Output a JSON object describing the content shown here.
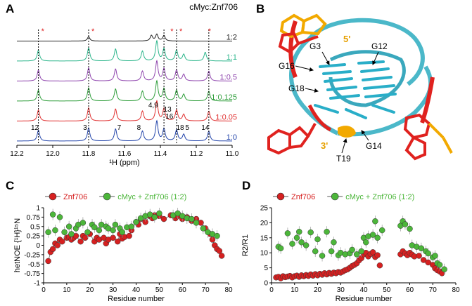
{
  "figure": {
    "panel_labels": {
      "a": "A",
      "b": "B",
      "c": "C",
      "d": "D"
    }
  },
  "chart_data": [
    {
      "panel": "A",
      "type": "line",
      "title": "cMyc:Znf706",
      "xlabel": "¹H (ppm)",
      "xlim": [
        12.2,
        11.0
      ],
      "x_ticks": [
        "12.2",
        "12.0",
        "11.8",
        "11.6",
        "11.4",
        "11.2",
        "11.0"
      ],
      "x_tick_values": [
        12.2,
        12.0,
        11.8,
        11.6,
        11.4,
        11.2,
        11.0
      ],
      "series": [
        {
          "name": "1:2",
          "color": "#222222",
          "peaks": [
            [
              11.8,
              0.2
            ],
            [
              11.45,
              0.25
            ],
            [
              11.42,
              0.3
            ],
            [
              11.38,
              0.25
            ]
          ]
        },
        {
          "name": "1:1",
          "color": "#2bb58a",
          "peaks": [
            [
              12.08,
              0.5
            ],
            [
              11.8,
              0.6
            ],
            [
              11.65,
              0.55
            ],
            [
              11.5,
              0.45
            ],
            [
              11.42,
              0.9
            ],
            [
              11.38,
              0.55
            ],
            [
              11.31,
              0.5
            ],
            [
              11.27,
              0.3
            ],
            [
              11.15,
              0.4
            ]
          ]
        },
        {
          "name": "1:0.5",
          "color": "#8e44ad",
          "peaks": [
            [
              12.08,
              0.5
            ],
            [
              11.8,
              0.6
            ],
            [
              11.65,
              0.55
            ],
            [
              11.5,
              0.45
            ],
            [
              11.42,
              0.9
            ],
            [
              11.38,
              0.55
            ],
            [
              11.31,
              0.5
            ],
            [
              11.27,
              0.3
            ],
            [
              11.13,
              0.45
            ]
          ]
        },
        {
          "name": "1:0.125",
          "color": "#2e9e3a",
          "peaks": [
            [
              12.08,
              0.5
            ],
            [
              11.8,
              0.6
            ],
            [
              11.65,
              0.55
            ],
            [
              11.5,
              0.45
            ],
            [
              11.42,
              0.9
            ],
            [
              11.38,
              0.55
            ],
            [
              11.31,
              0.5
            ],
            [
              11.27,
              0.3
            ],
            [
              11.13,
              0.45
            ]
          ]
        },
        {
          "name": "1:0.05",
          "color": "#e03030",
          "peaks": [
            [
              12.08,
              0.5
            ],
            [
              11.8,
              0.6
            ],
            [
              11.65,
              0.55
            ],
            [
              11.5,
              0.45
            ],
            [
              11.42,
              0.9
            ],
            [
              11.38,
              0.55
            ],
            [
              11.31,
              0.5
            ],
            [
              11.27,
              0.3
            ],
            [
              11.13,
              0.45
            ]
          ]
        },
        {
          "name": "1:0",
          "color": "#2244aa",
          "peaks": [
            [
              12.08,
              0.5
            ],
            [
              11.8,
              0.6
            ],
            [
              11.65,
              0.55
            ],
            [
              11.5,
              0.45
            ],
            [
              11.42,
              0.9
            ],
            [
              11.38,
              0.55
            ],
            [
              11.31,
              0.5
            ],
            [
              11.27,
              0.3
            ],
            [
              11.13,
              0.45
            ]
          ]
        }
      ],
      "dashed_lines_at": [
        12.08,
        11.8,
        11.38,
        11.31,
        11.13
      ],
      "star_markers": [
        12.08,
        11.8,
        11.36,
        11.31,
        11.15
      ],
      "peak_labels": [
        {
          "text": "12",
          "x": 12.1
        },
        {
          "text": "3",
          "x": 11.82
        },
        {
          "text": "7",
          "x": 11.63
        },
        {
          "text": "8",
          "x": 11.52
        },
        {
          "text": "4,9",
          "x": 11.44
        },
        {
          "text": "13",
          "x": 11.36
        },
        {
          "text": "16",
          "x": 11.35
        },
        {
          "text": "18",
          "x": 11.29
        },
        {
          "text": "5",
          "x": 11.25
        },
        {
          "text": "14",
          "x": 11.15
        }
      ]
    },
    {
      "panel": "B",
      "type": "other",
      "labels": [
        "5'",
        "G3",
        "G12",
        "G16",
        "G18",
        "3'",
        "T19",
        "G14"
      ],
      "colors": {
        "backbone": "#4bb8c9",
        "bases": "#29aec8",
        "ligand_red": "#e0221f",
        "ligand_gold": "#f2a900"
      }
    },
    {
      "panel": "C",
      "type": "scatter",
      "xlabel": "Residue number",
      "ylabel": "hetNOE {¹H}¹⁵N",
      "xlim": [
        0,
        80
      ],
      "ylim": [
        -1,
        1
      ],
      "x_ticks": [
        0,
        10,
        20,
        30,
        40,
        50,
        60,
        70,
        80
      ],
      "y_ticks": [
        -1,
        -0.75,
        -0.5,
        -0.25,
        0,
        0.25,
        0.5,
        0.75,
        1
      ],
      "y_tick_labels": [
        "-1",
        "-0.75",
        "-0.5",
        "-0.25",
        "0",
        "0.25",
        "0.5",
        "0.75",
        "1"
      ],
      "legend_position": "top",
      "series": [
        {
          "name": "Znf706",
          "color": "#d62020",
          "connected": true,
          "x": [
            2,
            3,
            4,
            5,
            6,
            7,
            8,
            10,
            11,
            12,
            13,
            14,
            16,
            17,
            18,
            20,
            22,
            23,
            24,
            26,
            27,
            28,
            30,
            32,
            33,
            34,
            35,
            37,
            38,
            40,
            41,
            42,
            44,
            46,
            47,
            48,
            50,
            52,
            55,
            57,
            58,
            60,
            62,
            64,
            66,
            68,
            70,
            72,
            73,
            74,
            75,
            76,
            77
          ],
          "y": [
            -0.42,
            -0.18,
            -0.1,
            0.05,
            0.0,
            0.15,
            0.1,
            0.2,
            0.22,
            0.15,
            0.2,
            0.25,
            0.1,
            0.25,
            0.2,
            0.3,
            0.1,
            0.2,
            0.15,
            0.2,
            0.05,
            0.15,
            0.2,
            0.1,
            0.3,
            0.18,
            0.22,
            0.25,
            0.4,
            0.62,
            0.55,
            0.7,
            0.62,
            0.78,
            0.72,
            0.8,
            0.78,
            0.7,
            0.8,
            0.72,
            0.78,
            0.7,
            0.75,
            0.65,
            0.7,
            0.6,
            0.45,
            0.3,
            0.15,
            0.0,
            -0.1,
            -0.15,
            -0.28
          ]
        },
        {
          "name": "cMyc + Znf706 (1:2)",
          "color": "#4cb63a",
          "connected": false,
          "x": [
            2,
            4,
            5,
            7,
            9,
            11,
            12,
            14,
            15,
            17,
            19,
            21,
            22,
            24,
            25,
            27,
            28,
            30,
            31,
            33,
            34,
            36,
            38,
            40,
            42,
            44,
            46,
            48,
            50,
            56,
            58,
            60,
            62,
            64,
            66,
            69,
            71,
            73,
            75
          ],
          "y": [
            0.35,
            0.82,
            0.4,
            0.75,
            0.35,
            0.5,
            0.3,
            0.45,
            0.55,
            0.6,
            0.35,
            0.55,
            0.48,
            0.4,
            0.55,
            0.5,
            0.45,
            0.4,
            0.55,
            0.45,
            0.35,
            0.48,
            0.5,
            0.62,
            0.72,
            0.78,
            0.82,
            0.75,
            0.85,
            0.8,
            0.85,
            0.78,
            0.72,
            0.7,
            0.6,
            0.45,
            0.35,
            0.3,
            0.25
          ]
        }
      ]
    },
    {
      "panel": "D",
      "type": "scatter",
      "xlabel": "Residue number",
      "ylabel": "R2/R1",
      "xlim": [
        0,
        80
      ],
      "ylim": [
        0,
        25
      ],
      "x_ticks": [
        0,
        10,
        20,
        30,
        40,
        50,
        60,
        70,
        80
      ],
      "y_ticks": [
        0,
        5,
        10,
        15,
        20,
        25
      ],
      "legend_position": "top",
      "series": [
        {
          "name": "Znf706",
          "color": "#d62020",
          "x": [
            2,
            3,
            4,
            5,
            6,
            7,
            8,
            9,
            10,
            11,
            12,
            13,
            14,
            15,
            16,
            17,
            18,
            19,
            20,
            21,
            22,
            23,
            24,
            25,
            26,
            27,
            28,
            29,
            30,
            31,
            32,
            33,
            34,
            35,
            36,
            37,
            38,
            39,
            40,
            41,
            42,
            43,
            44,
            45,
            46,
            47,
            56,
            57,
            58,
            59,
            60,
            61,
            62,
            64,
            66,
            68,
            70,
            71,
            72,
            73,
            74
          ],
          "y": [
            1.8,
            2.0,
            1.5,
            2.2,
            1.9,
            2.1,
            2.3,
            1.8,
            2.2,
            2.4,
            2.0,
            2.5,
            2.2,
            2.6,
            2.3,
            2.8,
            2.4,
            2.9,
            2.5,
            3.0,
            2.7,
            3.2,
            2.8,
            3.3,
            3.0,
            3.4,
            3.2,
            3.6,
            3.4,
            3.8,
            4.2,
            4.5,
            5.0,
            5.6,
            6.0,
            6.5,
            7.5,
            8.2,
            9.5,
            10.0,
            8.8,
            9.6,
            10.2,
            8.6,
            9.2,
            5.8,
            9.5,
            10.5,
            9.8,
            9.2,
            10.0,
            9.4,
            8.8,
            9.0,
            7.6,
            6.8,
            6.0,
            4.8,
            4.2,
            3.8,
            3.2
          ]
        },
        {
          "name": "cMyc + Znf706 (1:2)",
          "color": "#4cb63a",
          "x": [
            3,
            4,
            7,
            9,
            11,
            12,
            13,
            15,
            17,
            19,
            20,
            22,
            24,
            26,
            27,
            29,
            30,
            32,
            34,
            35,
            37,
            39,
            40,
            41,
            42,
            44,
            45,
            46,
            48,
            56,
            57,
            58,
            60,
            61,
            63,
            65,
            67,
            68,
            70,
            71,
            72,
            73,
            75
          ],
          "y": [
            12.0,
            11.5,
            16.5,
            13.0,
            15.0,
            17.0,
            13.5,
            12.5,
            16.8,
            10.5,
            14.5,
            9.0,
            17.0,
            10.5,
            13.5,
            9.2,
            10.0,
            9.5,
            9.8,
            11.0,
            9.5,
            10.5,
            15.0,
            13.5,
            15.5,
            16.0,
            20.5,
            15.0,
            17.5,
            19.0,
            20.5,
            19.5,
            18.0,
            12.5,
            12.0,
            11.5,
            10.5,
            9.8,
            8.5,
            9.0,
            6.5,
            6.0,
            4.5
          ]
        }
      ]
    }
  ]
}
